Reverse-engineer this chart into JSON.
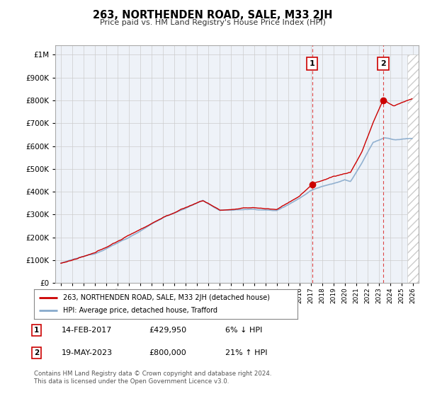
{
  "title": "263, NORTHENDEN ROAD, SALE, M33 2JH",
  "subtitle": "Price paid vs. HM Land Registry's House Price Index (HPI)",
  "legend_line1": "263, NORTHENDEN ROAD, SALE, M33 2JH (detached house)",
  "legend_line2": "HPI: Average price, detached house, Trafford",
  "sale1_date": "14-FEB-2017",
  "sale1_price": "£429,950",
  "sale1_hpi": "6% ↓ HPI",
  "sale1_year": 2017.12,
  "sale1_value": 429950,
  "sale2_date": "19-MAY-2023",
  "sale2_price": "£800,000",
  "sale2_hpi": "21% ↑ HPI",
  "sale2_year": 2023.38,
  "sale2_value": 800000,
  "footer": "Contains HM Land Registry data © Crown copyright and database right 2024.\nThis data is licensed under the Open Government Licence v3.0.",
  "ylim_max": 1000000,
  "xlim_start": 1994.5,
  "xlim_end": 2026.5,
  "property_color": "#cc0000",
  "hpi_color": "#88aacc",
  "vline_color": "#dd4444",
  "background_color": "#ffffff",
  "plot_bg_color": "#eef2f8"
}
